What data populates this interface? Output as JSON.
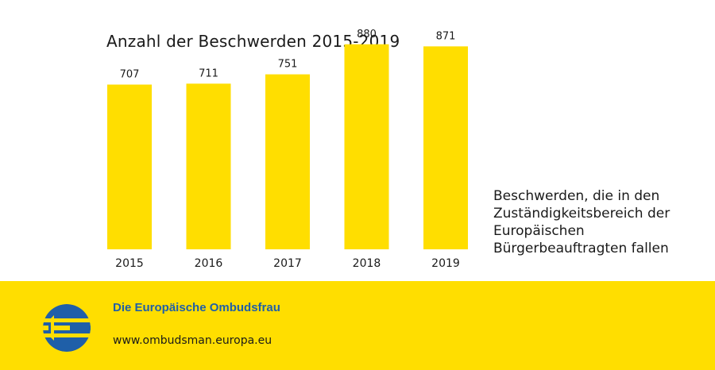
{
  "chart_data": {
    "type": "bar",
    "title": "Anzahl der Beschwerden 2015-2019",
    "categories": [
      "2015",
      "2016",
      "2017",
      "2018",
      "2019"
    ],
    "series": [
      {
        "name": "Beschwerden, die in den Zuständigkeitsbereich der Europäischen Bürgerbeauftragten fallen",
        "values": [
          707,
          711,
          751,
          880,
          871
        ]
      }
    ],
    "value_labels": [
      "707",
      "711",
      "751",
      "880",
      "871"
    ],
    "ylim": [
      0,
      1070
    ],
    "grid": false,
    "legend_placement": "right",
    "bar_color": "#ffde00",
    "xlabel": "",
    "ylabel": ""
  },
  "footer": {
    "org_name": "Die Europäische Ombudsfrau",
    "url": "www.ombudsman.europa.eu",
    "background_color": "#ffde00",
    "logo_icon": "european-ombudsman-logo-icon",
    "logo_color": "#1f5fa8"
  }
}
